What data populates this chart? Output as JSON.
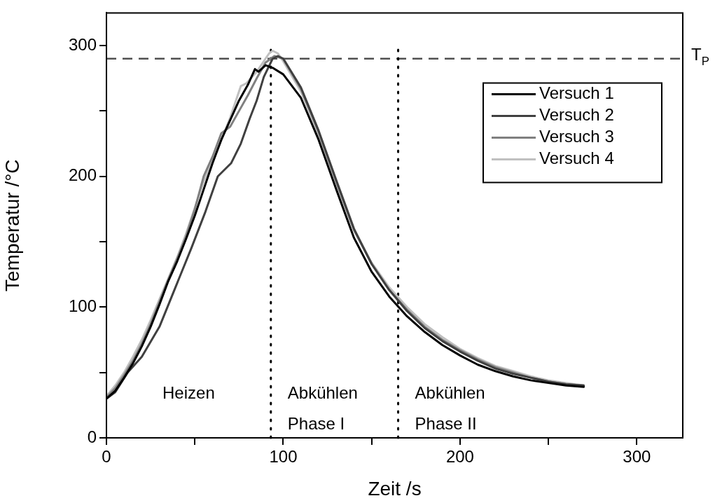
{
  "chart_data": {
    "type": "line",
    "xlabel": "Zeit /s",
    "ylabel": "Temperatur /°C",
    "xlim": [
      0,
      326
    ],
    "ylim": [
      0,
      325
    ],
    "xticks": [
      0,
      {
        "value": 50,
        "label": null
      },
      100,
      {
        "value": 150,
        "label": null
      },
      200,
      {
        "value": 250,
        "label": null
      },
      300
    ],
    "yticks": [
      0,
      {
        "value": 50,
        "label": null
      },
      100,
      {
        "value": 150,
        "label": null
      },
      200,
      {
        "value": 250,
        "label": null
      },
      300
    ],
    "grid": false,
    "legend": "top right",
    "marker": "none",
    "line_style": "solid",
    "series": [
      {
        "name": "Versuch 1",
        "color": "#000000",
        "x": [
          0,
          5,
          10,
          15,
          20,
          25,
          30,
          35,
          40,
          45,
          50,
          55,
          60,
          65,
          70,
          75,
          80,
          84,
          86,
          90,
          94,
          100,
          110,
          120,
          130,
          140,
          150,
          160,
          170,
          180,
          190,
          200,
          210,
          220,
          230,
          240,
          250,
          260,
          270
        ],
        "values": [
          30,
          36,
          46,
          57,
          70,
          85,
          102,
          120,
          135,
          152,
          170,
          190,
          210,
          228,
          243,
          258,
          270,
          282,
          280,
          285,
          283,
          278,
          260,
          228,
          190,
          153,
          127,
          108,
          93,
          81,
          71,
          63,
          56,
          51,
          47,
          44,
          42,
          40,
          39
        ]
      },
      {
        "name": "Versuch 2",
        "color": "#404040",
        "x": [
          0,
          5,
          12,
          20,
          30,
          39,
          48,
          56,
          63,
          70.5,
          76,
          81,
          85,
          89,
          94,
          97,
          100,
          110,
          120,
          130,
          140,
          150,
          160,
          170,
          180,
          190,
          200,
          210,
          220,
          230,
          240,
          250,
          260,
          270
        ],
        "values": [
          30,
          35,
          50,
          62,
          85,
          115,
          145,
          173,
          200,
          210,
          225,
          244,
          258,
          276,
          290,
          292,
          290,
          268,
          235,
          197,
          160,
          133,
          113,
          97,
          84,
          74,
          66,
          59,
          53,
          49,
          46,
          43,
          41,
          40
        ]
      },
      {
        "name": "Versuch 3",
        "color": "#808080",
        "x": [
          0,
          5,
          10,
          15,
          20,
          25,
          30,
          35,
          40,
          45,
          50,
          55,
          60,
          65,
          70,
          75,
          80,
          85,
          90,
          95,
          100,
          110,
          120,
          130,
          140,
          150,
          160,
          170,
          180,
          190,
          200,
          210,
          220,
          230,
          240,
          250,
          260,
          270
        ],
        "values": [
          31,
          38,
          48,
          59,
          72,
          87,
          104,
          121,
          137,
          154,
          175,
          200,
          215,
          233,
          238,
          250,
          262,
          275,
          287,
          292,
          290,
          267,
          234,
          196,
          159,
          133,
          113,
          98,
          85,
          75,
          67,
          60,
          54,
          50,
          46,
          43,
          41,
          40
        ]
      },
      {
        "name": "Versuch 4",
        "color": "#c0c0c0",
        "x": [
          0,
          5,
          10,
          15,
          20,
          25,
          30,
          35,
          40,
          45,
          50,
          55,
          60,
          65,
          70,
          76,
          79,
          85,
          92,
          94,
          97,
          100,
          110,
          120,
          130,
          140,
          150,
          160,
          170,
          180,
          190,
          200,
          210,
          220,
          230,
          240,
          250,
          260,
          270
        ],
        "values": [
          32,
          40,
          50,
          62,
          75,
          90,
          106,
          122,
          138,
          156,
          176,
          196,
          212,
          228,
          245,
          269,
          271,
          280,
          294,
          296,
          294,
          288,
          265,
          232,
          195,
          159,
          134,
          115,
          100,
          87,
          77,
          68,
          61,
          55,
          51,
          47,
          44,
          42,
          40
        ]
      }
    ],
    "ref_lines": [
      {
        "axis": "y",
        "value": 290,
        "label": "T$_{P}$",
        "color": "#505050",
        "line_style": "dashed"
      },
      {
        "axis": "x",
        "value": 93,
        "label": null,
        "color": "#000000",
        "line_style": "dotted"
      },
      {
        "axis": "x",
        "value": 165,
        "label": null,
        "color": "#000000",
        "line_style": "dotted"
      }
    ],
    "annotations": [
      "Heizen",
      "Abkühlen Phase I",
      "Abkühlen Phase II"
    ]
  }
}
